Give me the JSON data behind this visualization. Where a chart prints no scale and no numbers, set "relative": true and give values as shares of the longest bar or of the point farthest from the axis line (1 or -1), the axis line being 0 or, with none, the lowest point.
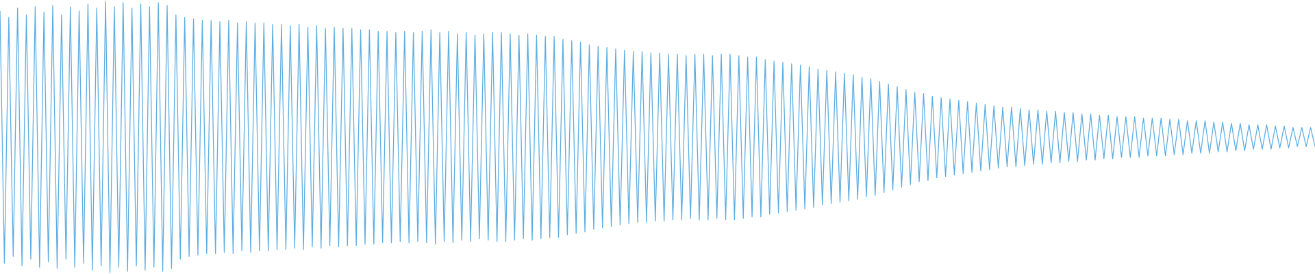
{
  "chart_data": {
    "type": "line",
    "relative": true,
    "legend": false,
    "marker": "none",
    "line_style": "solid",
    "categories": [
      null,
      null,
      null,
      null,
      null,
      null,
      null,
      null,
      null,
      null,
      null,
      null,
      null,
      null,
      null,
      null,
      null,
      null,
      null,
      null,
      null,
      null,
      null,
      null,
      null,
      null,
      null,
      null,
      null,
      null,
      null,
      null,
      null,
      null,
      null,
      null,
      null,
      null,
      null,
      null,
      null,
      null,
      null,
      null,
      null,
      null,
      null,
      null,
      null,
      null,
      null,
      null,
      null,
      null,
      null,
      null,
      null,
      null,
      null,
      null,
      null,
      null,
      null,
      null,
      null,
      null,
      null,
      null,
      null,
      null,
      null,
      null,
      null,
      null,
      null,
      null,
      null,
      null,
      null,
      null,
      null,
      null,
      null,
      null,
      null,
      null,
      null,
      null,
      null,
      null,
      null,
      null,
      null,
      null,
      null,
      null,
      null,
      null,
      null,
      null,
      null,
      null,
      null,
      null,
      null,
      null,
      null,
      null,
      null,
      null,
      null,
      null,
      null,
      null,
      null,
      null,
      null,
      null,
      null,
      null,
      null,
      null,
      null,
      null,
      null,
      null,
      null,
      null,
      null,
      null,
      null,
      null,
      null,
      null,
      null,
      null,
      null,
      null,
      null,
      null,
      null,
      null,
      null,
      null,
      null,
      null,
      null,
      null,
      null,
      null,
      null,
      null,
      null,
      null,
      null,
      null,
      null,
      null,
      null,
      null,
      null,
      null,
      null,
      null,
      null,
      null,
      null,
      null,
      null,
      null,
      null,
      null,
      null,
      null,
      null,
      null,
      null,
      null,
      null,
      null,
      null,
      null,
      null,
      null,
      null,
      null,
      null,
      null,
      null,
      null,
      null,
      null,
      null,
      null,
      null,
      null,
      null,
      null,
      null,
      null,
      null,
      null,
      null,
      null,
      null,
      null,
      null,
      null,
      null,
      null,
      null,
      null,
      null,
      null,
      null,
      null,
      null,
      null,
      null,
      null,
      null,
      null,
      null,
      null,
      null,
      null,
      null,
      null,
      null,
      null,
      null,
      null,
      null,
      null,
      null,
      null,
      null,
      null,
      null,
      null,
      null,
      null,
      null,
      null,
      null,
      null,
      null,
      null,
      null,
      null,
      null,
      null,
      null,
      null,
      null,
      null,
      null,
      null,
      null,
      null,
      null,
      null,
      null,
      null,
      null,
      null,
      null,
      null,
      null,
      null,
      null,
      null,
      null,
      null,
      null,
      null,
      null,
      null,
      null,
      null,
      null,
      null,
      null,
      null,
      null,
      null,
      null,
      null,
      null,
      null,
      null,
      null,
      null,
      null,
      null,
      null,
      null,
      null,
      null,
      null
    ],
    "series": [
      {
        "color": "#5dade2",
        "values": [
          0.965,
          0.035,
          0.94,
          0.06,
          0.975,
          0.025,
          0.95,
          0.05,
          0.98,
          0.02,
          0.96,
          0.04,
          0.985,
          0.015,
          0.95,
          0.05,
          0.98,
          0.02,
          0.965,
          0.035,
          0.99,
          0.01,
          0.975,
          0.025,
          1,
          0,
          0.98,
          0.02,
          0.995,
          0.005,
          0.975,
          0.025,
          0.99,
          0.01,
          0.98,
          0.02,
          0.995,
          0.005,
          0.985,
          0.015,
          0.95,
          0.05,
          0.94,
          0.06,
          0.935,
          0.065,
          0.93,
          0.07,
          0.93,
          0.07,
          0.925,
          0.075,
          0.93,
          0.07,
          0.92,
          0.08,
          0.925,
          0.075,
          0.92,
          0.08,
          0.92,
          0.08,
          0.915,
          0.085,
          0.915,
          0.085,
          0.91,
          0.09,
          0.915,
          0.085,
          0.905,
          0.095,
          0.91,
          0.09,
          0.9,
          0.1,
          0.905,
          0.095,
          0.9,
          0.1,
          0.9,
          0.1,
          0.895,
          0.105,
          0.895,
          0.105,
          0.89,
          0.11,
          0.89,
          0.11,
          0.885,
          0.115,
          0.89,
          0.11,
          0.885,
          0.115,
          0.89,
          0.11,
          0.895,
          0.105,
          0.885,
          0.115,
          0.89,
          0.11,
          0.88,
          0.12,
          0.885,
          0.115,
          0.875,
          0.125,
          0.88,
          0.12,
          0.885,
          0.115,
          0.885,
          0.115,
          0.88,
          0.12,
          0.875,
          0.125,
          0.88,
          0.12,
          0.875,
          0.125,
          0.87,
          0.13,
          0.87,
          0.13,
          0.86,
          0.14,
          0.855,
          0.145,
          0.85,
          0.15,
          0.84,
          0.16,
          0.835,
          0.165,
          0.83,
          0.17,
          0.825,
          0.175,
          0.82,
          0.18,
          0.815,
          0.185,
          0.815,
          0.185,
          0.81,
          0.19,
          0.81,
          0.19,
          0.805,
          0.195,
          0.805,
          0.195,
          0.8,
          0.2,
          0.805,
          0.195,
          0.805,
          0.195,
          0.8,
          0.2,
          0.805,
          0.195,
          0.805,
          0.195,
          0.8,
          0.2,
          0.795,
          0.205,
          0.795,
          0.205,
          0.785,
          0.215,
          0.78,
          0.22,
          0.775,
          0.225,
          0.77,
          0.23,
          0.765,
          0.235,
          0.76,
          0.24,
          0.75,
          0.25,
          0.745,
          0.255,
          0.74,
          0.26,
          0.735,
          0.265,
          0.73,
          0.27,
          0.72,
          0.28,
          0.715,
          0.285,
          0.705,
          0.295,
          0.695,
          0.305,
          0.685,
          0.315,
          0.675,
          0.325,
          0.665,
          0.335,
          0.66,
          0.34,
          0.65,
          0.35,
          0.645,
          0.355,
          0.64,
          0.36,
          0.635,
          0.365,
          0.63,
          0.37,
          0.625,
          0.375,
          0.62,
          0.38,
          0.615,
          0.385,
          0.61,
          0.39,
          0.61,
          0.39,
          0.605,
          0.395,
          0.6,
          0.4,
          0.6,
          0.4,
          0.595,
          0.405,
          0.595,
          0.405,
          0.59,
          0.41,
          0.59,
          0.41,
          0.585,
          0.415,
          0.585,
          0.415,
          0.58,
          0.42,
          0.58,
          0.42,
          0.575,
          0.425,
          0.575,
          0.425,
          0.575,
          0.425,
          0.57,
          0.43,
          0.57,
          0.43,
          0.57,
          0.43,
          0.565,
          0.435,
          0.565,
          0.435,
          0.56,
          0.44,
          0.56,
          0.44,
          0.56,
          0.44,
          0.555,
          0.445,
          0.555,
          0.445,
          0.55,
          0.45,
          0.55,
          0.45,
          0.545,
          0.455,
          0.545,
          0.455,
          0.545,
          0.455,
          0.54,
          0.46,
          0.54,
          0.46,
          0.535,
          0.465,
          0.535,
          0.465,
          0.535,
          0.465
        ]
      }
    ]
  }
}
